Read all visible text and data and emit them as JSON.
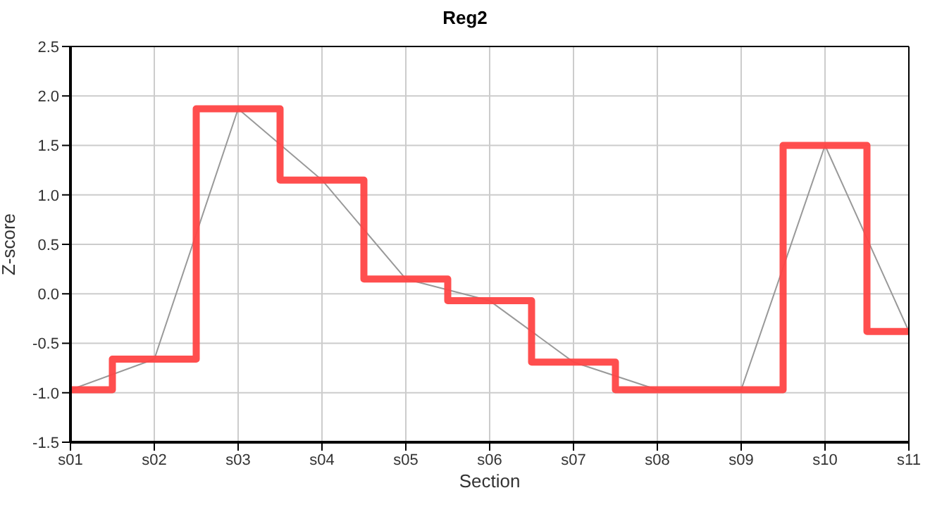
{
  "chart_data": {
    "type": "step",
    "title": "Reg2",
    "xlabel": "Section",
    "ylabel": "Z-score",
    "categories": [
      "s01",
      "s02",
      "s03",
      "s04",
      "s05",
      "s06",
      "s07",
      "s08",
      "s09",
      "s10",
      "s11"
    ],
    "series": [
      {
        "color": "#ff4545",
        "values": [
          -0.97,
          -0.66,
          1.87,
          1.15,
          0.15,
          -0.07,
          -0.69,
          -0.97,
          -0.97,
          1.5,
          -0.38
        ]
      },
      {
        "type": "line",
        "color": "#999999",
        "values": [
          -0.97,
          -0.66,
          1.87,
          1.15,
          0.15,
          -0.07,
          -0.69,
          -0.97,
          -0.97,
          1.5,
          -0.38
        ]
      }
    ],
    "ylim": [
      -1.5,
      2.5
    ],
    "yticks": [
      -1.5,
      {
        "value": -1,
        "label": "-1.0"
      },
      -0.5,
      {
        "value": 0,
        "label": "0.0"
      },
      0.5,
      {
        "value": 1,
        "label": "1.0"
      },
      1.5,
      {
        "value": 2,
        "label": "2.0"
      },
      2.5
    ],
    "grid": true,
    "legend": false,
    "marker": "none",
    "line_style": "solid"
  }
}
